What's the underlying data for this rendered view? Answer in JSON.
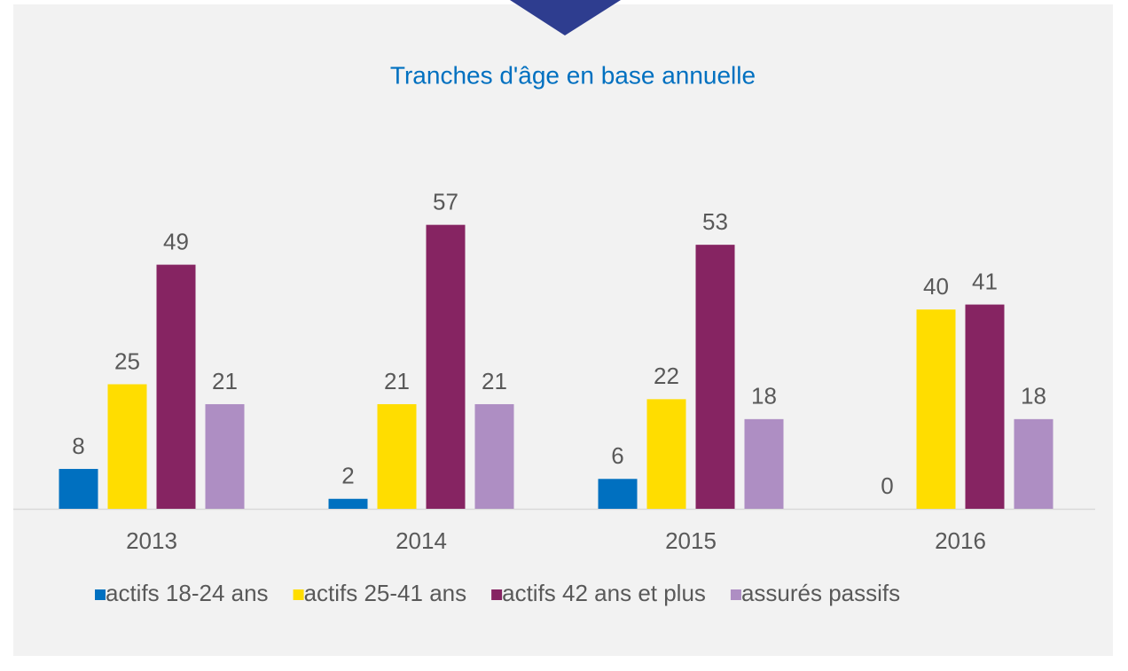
{
  "chart_data": {
    "type": "bar",
    "title": "Tranches d'âge en base annuelle",
    "categories": [
      "2013",
      "2014",
      "2015",
      "2016"
    ],
    "series": [
      {
        "name": "actifs 18-24 ans",
        "color": "#0070c0",
        "values": [
          8,
          2,
          6,
          0
        ]
      },
      {
        "name": "actifs 25-41 ans",
        "color": "#ffdd00",
        "values": [
          25,
          21,
          22,
          40
        ]
      },
      {
        "name": "actifs 42 ans et plus",
        "color": "#862462",
        "values": [
          49,
          57,
          53,
          41
        ]
      },
      {
        "name": "assurés passifs",
        "color": "#ae8ec3",
        "values": [
          21,
          21,
          18,
          18
        ]
      }
    ],
    "legend": "bottom"
  }
}
